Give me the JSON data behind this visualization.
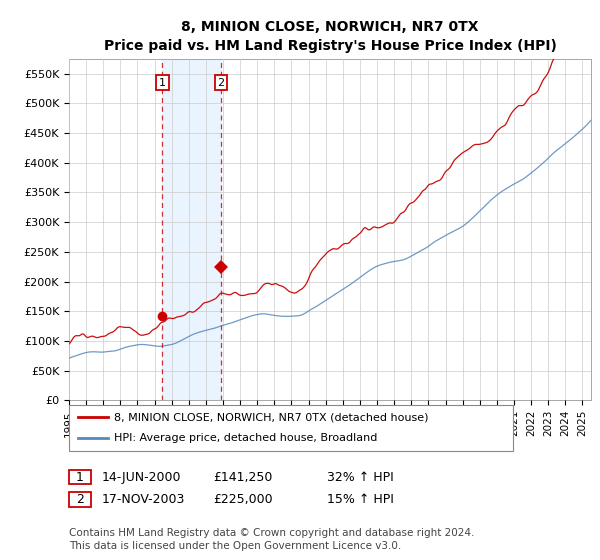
{
  "title": "8, MINION CLOSE, NORWICH, NR7 0TX",
  "subtitle": "Price paid vs. HM Land Registry's House Price Index (HPI)",
  "legend_line1": "8, MINION CLOSE, NORWICH, NR7 0TX (detached house)",
  "legend_line2": "HPI: Average price, detached house, Broadland",
  "sale1_date": "14-JUN-2000",
  "sale1_price": "£141,250",
  "sale1_hpi": "32% ↑ HPI",
  "sale1_year": 2000.46,
  "sale1_val": 141250,
  "sale2_date": "17-NOV-2003",
  "sale2_price": "£225,000",
  "sale2_hpi": "15% ↑ HPI",
  "sale2_year": 2003.88,
  "sale2_val": 225000,
  "footer": "Contains HM Land Registry data © Crown copyright and database right 2024.\nThis data is licensed under the Open Government Licence v3.0.",
  "red_color": "#cc0000",
  "blue_color": "#5588bb",
  "shade_color": "#ddeeff",
  "ylim": [
    0,
    575000
  ],
  "xlim_start": 1995.0,
  "xlim_end": 2025.5,
  "yticks": [
    0,
    50000,
    100000,
    150000,
    200000,
    250000,
    300000,
    350000,
    400000,
    450000,
    500000,
    550000
  ],
  "ytick_labels": [
    "£0",
    "£50K",
    "£100K",
    "£150K",
    "£200K",
    "£250K",
    "£300K",
    "£350K",
    "£400K",
    "£450K",
    "£500K",
    "£550K"
  ],
  "fig_width": 6.0,
  "fig_height": 5.6,
  "dpi": 100
}
